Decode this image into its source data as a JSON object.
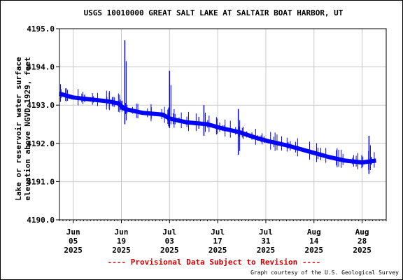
{
  "chart_data": {
    "type": "line",
    "title": "USGS 10010000 GREAT SALT LAKE AT SALTAIR BOAT HARBOR, UT",
    "ylabel_line1": "Lake or reservoir water surface",
    "ylabel_line2": "elevation above NGVD 1929, feet",
    "xlabel": "",
    "ylim": [
      4190.0,
      4195.0
    ],
    "y_ticks": [
      "4190.0",
      "4191.0",
      "4192.0",
      "4193.0",
      "4194.0",
      "4195.0"
    ],
    "x_ticks": [
      {
        "month": "Jun",
        "day": "05",
        "year": "2025"
      },
      {
        "month": "Jun",
        "day": "19",
        "year": "2025"
      },
      {
        "month": "Jul",
        "day": "03",
        "year": "2025"
      },
      {
        "month": "Jul",
        "day": "17",
        "year": "2025"
      },
      {
        "month": "Jul",
        "day": "31",
        "year": "2025"
      },
      {
        "month": "Aug",
        "day": "14",
        "year": "2025"
      },
      {
        "month": "Aug",
        "day": "28",
        "year": "2025"
      }
    ],
    "grid": true,
    "series_color": "#0000ff",
    "series": [
      {
        "x": [
          "2025-06-01",
          "2025-06-05",
          "2025-06-10",
          "2025-06-15",
          "2025-06-18",
          "2025-06-20",
          "2025-06-25",
          "2025-07-01",
          "2025-07-03",
          "2025-07-08",
          "2025-07-14",
          "2025-07-18",
          "2025-07-23",
          "2025-07-28",
          "2025-08-01",
          "2025-08-06",
          "2025-08-12",
          "2025-08-18",
          "2025-08-23",
          "2025-08-28",
          "2025-09-01"
        ],
        "y": [
          4193.3,
          4193.2,
          4193.15,
          4193.1,
          4193.05,
          4192.9,
          4192.8,
          4192.75,
          4192.65,
          4192.55,
          4192.5,
          4192.4,
          4192.3,
          4192.15,
          4192.05,
          4191.95,
          4191.8,
          4191.65,
          4191.55,
          4191.5,
          4191.55
        ]
      }
    ],
    "spikes": [
      {
        "x": "2025-06-20",
        "high": 4194.7,
        "low": 4192.5
      },
      {
        "x": "2025-07-03",
        "high": 4193.9,
        "low": 4192.4
      },
      {
        "x": "2025-07-13",
        "high": 4193.0,
        "low": 4192.2
      },
      {
        "x": "2025-07-23",
        "high": 4192.9,
        "low": 4191.7
      },
      {
        "x": "2025-08-30",
        "high": 4192.2,
        "low": 4191.2
      }
    ]
  },
  "footer": {
    "provisional": "---- Provisional Data Subject to Revision ----",
    "courtesy": "Graph courtesy of the U.S. Geological Survey"
  }
}
